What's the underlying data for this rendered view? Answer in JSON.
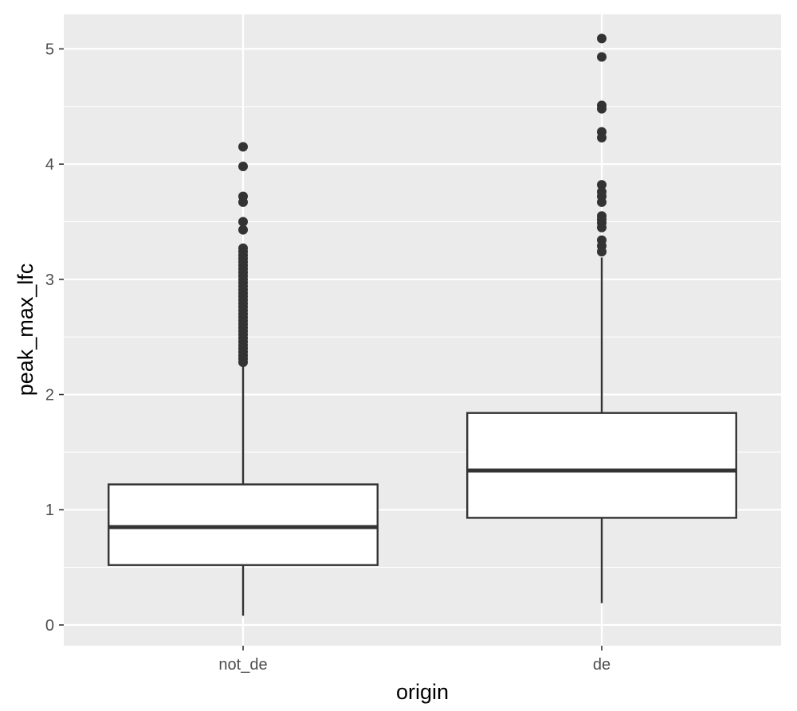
{
  "chart_data": {
    "type": "box",
    "title": "",
    "xlabel": "origin",
    "ylabel": "peak_max_lfc",
    "categories": [
      "not_de",
      "de"
    ],
    "ylim": [
      -0.18,
      5.3
    ],
    "yticks": [
      0,
      1,
      2,
      3,
      4,
      5
    ],
    "grid": true,
    "colors": {
      "panel_bg": "#ebebeb",
      "grid_major": "#ffffff",
      "box_fill": "#ffffff",
      "box_stroke": "#333333",
      "outlier": "#333333"
    },
    "boxes": [
      {
        "category": "not_de",
        "whisker_low": 0.08,
        "q1": 0.52,
        "median": 0.85,
        "q3": 1.22,
        "whisker_high": 2.27,
        "outliers": [
          4.15,
          3.98,
          3.72,
          3.67,
          3.5,
          3.43,
          3.27,
          3.24,
          3.21,
          3.18,
          3.15,
          3.12,
          3.09,
          3.06,
          3.03,
          3.0,
          2.97,
          2.94,
          2.91,
          2.88,
          2.85,
          2.82,
          2.79,
          2.76,
          2.73,
          2.7,
          2.67,
          2.64,
          2.61,
          2.58,
          2.55,
          2.52,
          2.49,
          2.46,
          2.43,
          2.4,
          2.37,
          2.34,
          2.31,
          2.28
        ]
      },
      {
        "category": "de",
        "whisker_low": 0.19,
        "q1": 0.93,
        "median": 1.34,
        "q3": 1.84,
        "whisker_high": 3.19,
        "outliers": [
          5.09,
          4.93,
          4.51,
          4.48,
          4.28,
          4.23,
          3.82,
          3.76,
          3.72,
          3.67,
          3.55,
          3.52,
          3.49,
          3.45,
          3.34,
          3.29,
          3.24
        ]
      }
    ]
  }
}
